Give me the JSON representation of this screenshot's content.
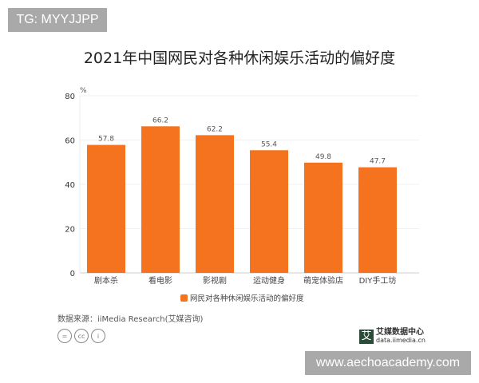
{
  "watermark_top": "TG: MYYJJPP",
  "watermark_bottom": "www.aechoacademy.com",
  "source": "数据来源：iiMedia Research(艾媒咨询)",
  "logo": {
    "name": "艾媒数据中心",
    "url": "data.iimedia.cn",
    "mark": "艾"
  },
  "license_icons": [
    "=",
    "cc",
    "i"
  ],
  "chart_data": {
    "type": "bar",
    "title": "2021年中国网民对各种休闲娱乐活动的偏好度",
    "ylabel": "%",
    "ylim": [
      0,
      80
    ],
    "yticks": [
      0,
      20,
      40,
      60,
      80
    ],
    "categories": [
      "剧本杀",
      "看电影",
      "影视剧",
      "运动健身",
      "萌宠体验店",
      "DIY手工坊"
    ],
    "series": [
      {
        "name": "网民对各种休闲娱乐活动的偏好度",
        "values": [
          57.8,
          66.2,
          62.2,
          55.4,
          49.8,
          47.7
        ],
        "color": "#f5731f"
      }
    ],
    "legend": "bottom",
    "grid": true
  }
}
